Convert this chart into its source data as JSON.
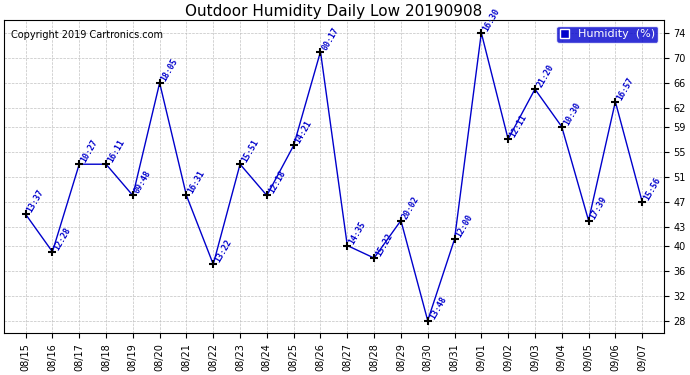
{
  "title": "Outdoor Humidity Daily Low 20190908",
  "copyright": "Copyright 2019 Cartronics.com",
  "legend_label": "Humidity  (%)",
  "ylim": [
    26,
    76
  ],
  "yticks": [
    28,
    32,
    36,
    40,
    43,
    47,
    51,
    55,
    59,
    62,
    66,
    70,
    74
  ],
  "line_color": "#0000CC",
  "marker": "+",
  "background_color": "#ffffff",
  "grid_color": "#bbbbbb",
  "x_indices": [
    0,
    1,
    2,
    3,
    4,
    5,
    6,
    7,
    8,
    9,
    10,
    11,
    12,
    13,
    14,
    15,
    16,
    17,
    18,
    19,
    20,
    21,
    22,
    23
  ],
  "y_values": [
    45,
    39,
    53,
    53,
    48,
    66,
    48,
    37,
    53,
    48,
    56,
    71,
    40,
    38,
    44,
    28,
    41,
    74,
    57,
    65,
    59,
    44,
    63,
    47
  ],
  "point_labels": [
    "13:37",
    "12:28",
    "10:27",
    "16:11",
    "09:48",
    "18:05",
    "16:31",
    "13:22",
    "15:51",
    "12:18",
    "14:21",
    "00:17",
    "14:35",
    "15:22",
    "20:02",
    "13:48",
    "12:00",
    "16:30",
    "12:11",
    "21:20",
    "10:30",
    "17:39",
    "16:57",
    "15:56"
  ],
  "x_tick_labels": [
    "08/15",
    "08/16",
    "08/17",
    "08/18",
    "08/19",
    "08/20",
    "08/21",
    "08/22",
    "08/23",
    "08/24",
    "08/25",
    "08/26",
    "08/27",
    "08/28",
    "08/29",
    "08/30",
    "08/31",
    "09/01",
    "09/02",
    "09/03",
    "09/04",
    "09/05",
    "09/06",
    "09/07"
  ],
  "title_fontsize": 11,
  "copyright_fontsize": 7,
  "tick_fontsize": 7,
  "annot_fontsize": 6
}
